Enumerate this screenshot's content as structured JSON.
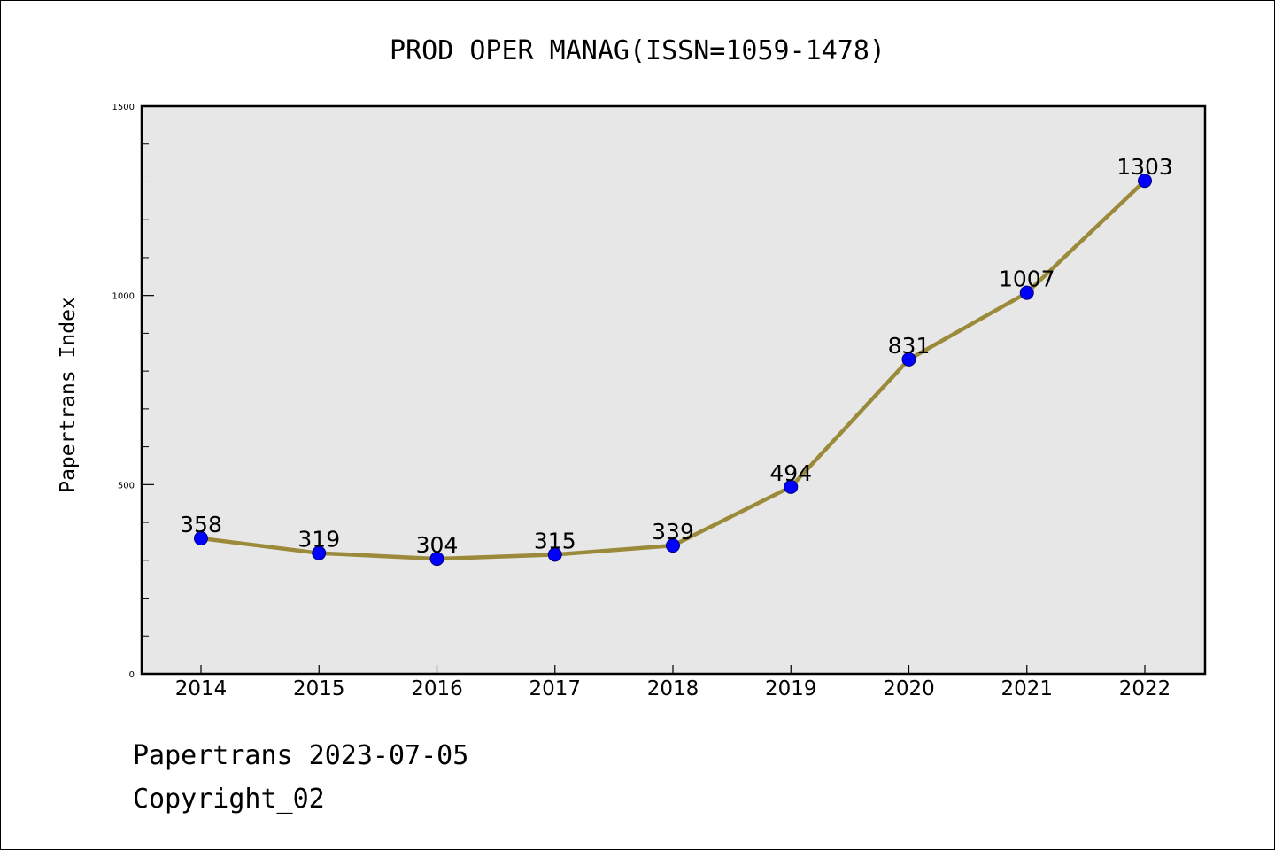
{
  "chart_data": {
    "type": "line",
    "title": "PROD OPER MANAG(ISSN=1059-1478)",
    "xlabel": "",
    "ylabel": "Papertrans Index",
    "categories": [
      "2014",
      "2015",
      "2016",
      "2017",
      "2018",
      "2019",
      "2020",
      "2021",
      "2022"
    ],
    "series": [
      {
        "values": [
          358,
          319,
          304,
          315,
          339,
          494,
          831,
          1007,
          1303
        ]
      }
    ],
    "data_labels": [
      "358",
      "319",
      "304",
      "315",
      "339",
      "494",
      "831",
      "1007",
      "1303"
    ],
    "ylim": [
      0,
      1500
    ],
    "y_major_ticks": [
      0,
      500,
      1000,
      1500
    ],
    "y_minor_step": 100,
    "grid": false,
    "legend": "none",
    "colors": {
      "line": "#9A8A3A",
      "marker": "#0000FF",
      "plot_background": "#E7E7E7"
    }
  },
  "footer": {
    "line1": "Papertrans 2023-07-05",
    "line2": "Copyright_02"
  }
}
